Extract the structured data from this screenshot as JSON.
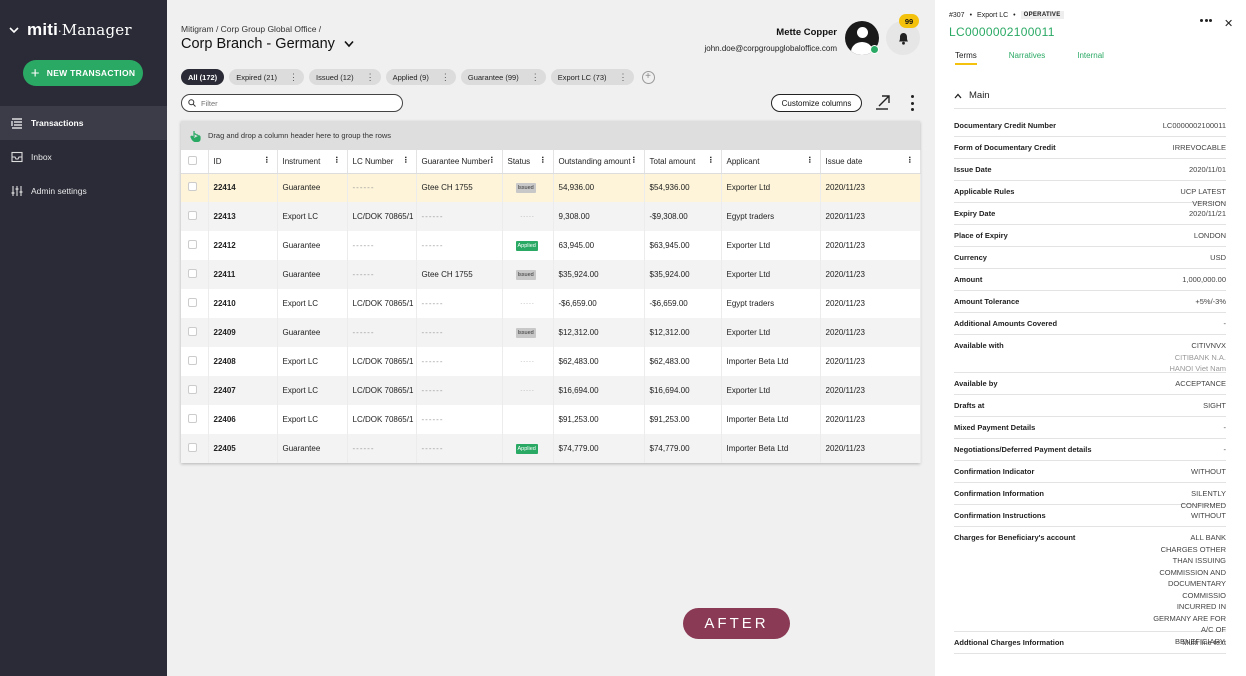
{
  "app": {
    "logo_bold": "miti",
    "logo_rest": "Manager"
  },
  "sidebar": {
    "new_transaction": "NEW TRANSACTION",
    "items": [
      {
        "label": "Transactions",
        "icon": "list-icon",
        "active": true
      },
      {
        "label": "Inbox",
        "icon": "inbox-icon",
        "active": false
      },
      {
        "label": "Admin settings",
        "icon": "sliders-icon",
        "active": false
      }
    ]
  },
  "header": {
    "breadcrumb": "Mitigram / Corp Group Global Office /",
    "title": "Corp Branch - Germany",
    "user_name": "Mette Copper",
    "user_email": "john.doe@corpgroupglobaloffice.com",
    "notifications": "99"
  },
  "chips": [
    "All (172)",
    "Expired (21)",
    "Issued (12)",
    "Applied (9)",
    "Guarantee (99)",
    "Export LC (73)"
  ],
  "toolbar": {
    "filter_placeholder": "Filter",
    "customize": "Customize columns"
  },
  "grid": {
    "group_hint": "Drag and drop a column header here to group the rows",
    "columns": [
      "ID",
      "Instrument",
      "LC Number",
      "Guarantee Number",
      "Status",
      "Outstanding amount",
      "Total amount",
      "Applicant",
      "Issue date"
    ],
    "rows": [
      {
        "id": "22414",
        "instrument": "Guarantee",
        "lc": "------",
        "guarantee": "Gtee CH 1755",
        "status": "Issued",
        "outstanding": "54,936.00",
        "total": "$54,936.00",
        "applicant": "Exporter Ltd",
        "date": "2020/11/23"
      },
      {
        "id": "22413",
        "instrument": "Export LC",
        "lc": "LC/DOK 70865/1",
        "guarantee": "------",
        "status": "-----",
        "outstanding": "9,308.00",
        "total": "-$9,308.00",
        "applicant": "Egypt traders",
        "date": "2020/11/23"
      },
      {
        "id": "22412",
        "instrument": "Guarantee",
        "lc": "------",
        "guarantee": "------",
        "status": "Applied",
        "outstanding": "63,945.00",
        "total": "$63,945.00",
        "applicant": "Exporter Ltd",
        "date": "2020/11/23"
      },
      {
        "id": "22411",
        "instrument": "Guarantee",
        "lc": "------",
        "guarantee": "Gtee CH 1755",
        "status": "Issued",
        "outstanding": "$35,924.00",
        "total": "$35,924.00",
        "applicant": "Exporter Ltd",
        "date": "2020/11/23"
      },
      {
        "id": "22410",
        "instrument": "Export LC",
        "lc": "LC/DOK 70865/1",
        "guarantee": "------",
        "status": "-----",
        "outstanding": "-$6,659.00",
        "total": "-$6,659.00",
        "applicant": "Egypt traders",
        "date": "2020/11/23"
      },
      {
        "id": "22409",
        "instrument": "Guarantee",
        "lc": "------",
        "guarantee": "------",
        "status": "Issued",
        "outstanding": "$12,312.00",
        "total": "$12,312.00",
        "applicant": "Exporter Ltd",
        "date": "2020/11/23"
      },
      {
        "id": "22408",
        "instrument": "Export LC",
        "lc": "LC/DOK 70865/1",
        "guarantee": "------",
        "status": "-----",
        "outstanding": "$62,483.00",
        "total": "$62,483.00",
        "applicant": "Importer Beta Ltd",
        "date": "2020/11/23"
      },
      {
        "id": "22407",
        "instrument": "Export LC",
        "lc": "LC/DOK 70865/1",
        "guarantee": "------",
        "status": "-----",
        "outstanding": "$16,694.00",
        "total": "$16,694.00",
        "applicant": "Exporter Ltd",
        "date": "2020/11/23"
      },
      {
        "id": "22406",
        "instrument": "Export LC",
        "lc": "LC/DOK 70865/1",
        "guarantee": "------",
        "status": "",
        "outstanding": "$91,253.00",
        "total": "$91,253.00",
        "applicant": "Importer Beta Ltd",
        "date": "2020/11/23"
      },
      {
        "id": "22405",
        "instrument": "Guarantee",
        "lc": "------",
        "guarantee": "------",
        "status": "Applied",
        "outstanding": "$74,779.00",
        "total": "$74,779.00",
        "applicant": "Importer Beta Ltd",
        "date": "2020/11/23"
      }
    ]
  },
  "after_label": "AFTER",
  "panel": {
    "number": "#307",
    "type": "Export LC",
    "state": "OPERATIVE",
    "reference": "LC0000002100011",
    "tabs": [
      "Terms",
      "Narratives",
      "Internal"
    ],
    "section": "Main",
    "fields": [
      {
        "k": "Documentary Credit Number",
        "v": "LC0000002100011"
      },
      {
        "k": "Form of Documentary Credit",
        "v": "IRREVOCABLE"
      },
      {
        "k": "Issue Date",
        "v": "2020/11/01"
      },
      {
        "k": "Applicable Rules",
        "v": "UCP LATEST\nVERSION"
      },
      {
        "k": "Expiry Date",
        "v": "2020/11/21"
      },
      {
        "k": "Place of Expiry",
        "v": "LONDON"
      },
      {
        "k": "Currency",
        "v": "USD"
      },
      {
        "k": "Amount",
        "v": "1,000,000.00"
      },
      {
        "k": "Amount Tolerance",
        "v": "+5%/-3%"
      },
      {
        "k": "Additional Amounts Covered",
        "v": "-"
      },
      {
        "k": "Available with",
        "v": "CITIVNVX",
        "v2": "CITIBANK N.A.\nHANOI Viet Nam"
      },
      {
        "k": "Available by",
        "v": "ACCEPTANCE"
      },
      {
        "k": "Drafts at",
        "v": "SIGHT"
      },
      {
        "k": "Mixed Payment Details",
        "v": "-"
      },
      {
        "k": "Negotiations/Deferred Payment details",
        "v": "-"
      },
      {
        "k": "Confirmation Indicator",
        "v": "WITHOUT"
      },
      {
        "k": "Confirmation Information",
        "v": "SILENTLY\nCONFIRMED"
      },
      {
        "k": "Confirmation Instructions",
        "v": "WITHOUT"
      },
      {
        "k": "Charges for Beneficiary's account",
        "v": "ALL BANK\nCHARGES OTHER\nTHAN ISSUING\nCOMMISSION AND\nDOCUMENTARY\nCOMMISSIO\nINCURRED IN\nGERMANY ARE FOR\nA/C OF\nBENEFICIARY."
      },
      {
        "k": "Addtional Charges Information",
        "v": "Multi line text"
      }
    ]
  }
}
